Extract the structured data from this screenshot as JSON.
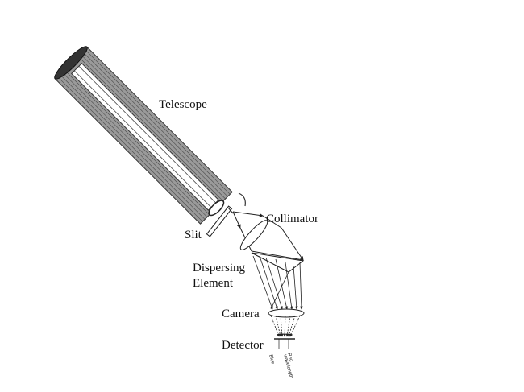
{
  "labels": {
    "telescope": "Telescope",
    "collimator": "Collimator",
    "slit": "Slit",
    "dispersing_line1": "Dispersing",
    "dispersing_line2": "Element",
    "camera": "Camera",
    "detector": "Detector",
    "blue": "Blue",
    "red_line1": "Red",
    "red_line2": "wavelength"
  },
  "colors": {
    "ink": "#222222",
    "tube": "#555555"
  }
}
